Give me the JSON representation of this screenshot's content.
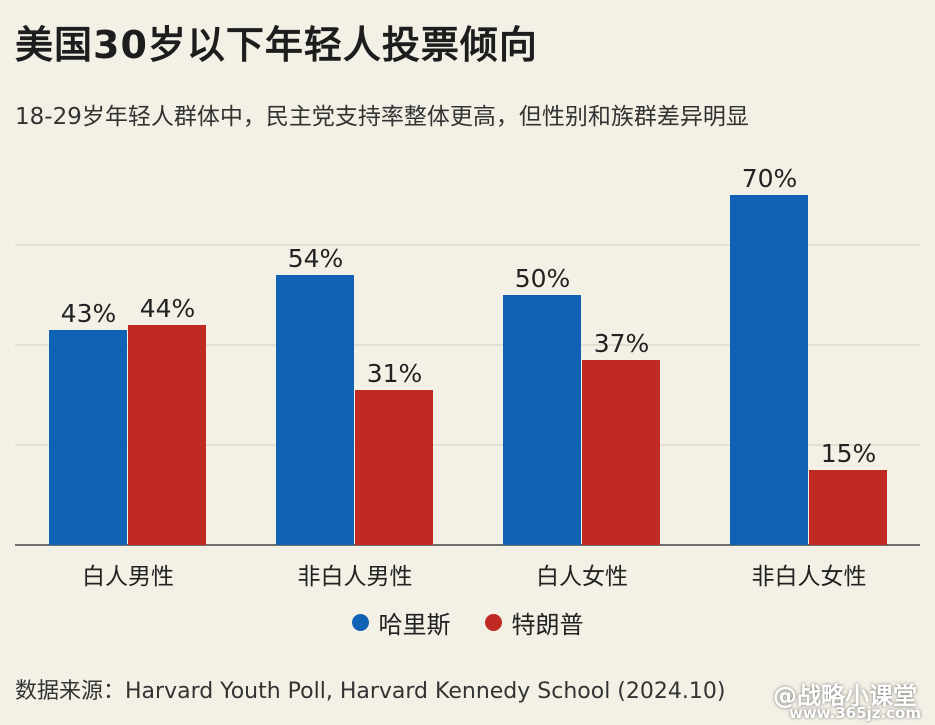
{
  "header": {
    "title": "美国30岁以下年轻人投票倾向",
    "subtitle": "18-29岁年轻人群体中，民主党支持率整体更高，但性别和族群差异明显"
  },
  "chart_data": {
    "type": "bar",
    "categories": [
      "白人男性",
      "非白人男性",
      "白人女性",
      "非白人女性"
    ],
    "series": [
      {
        "name": "哈里斯",
        "values": [
          43,
          54,
          50,
          70
        ],
        "color": "#1062b4"
      },
      {
        "name": "特朗普",
        "values": [
          44,
          31,
          37,
          15
        ],
        "color": "#c02a22"
      }
    ],
    "value_suffix": "%",
    "ylim": [
      0,
      80
    ],
    "grid": true,
    "legend_position": "bottom"
  },
  "legend": {
    "items": [
      {
        "label": "哈里斯",
        "color": "#1062b4"
      },
      {
        "label": "特朗普",
        "color": "#c02a22"
      }
    ]
  },
  "footer": {
    "source": "数据来源：Harvard Youth Poll, Harvard Kennedy School (2024.10)",
    "watermark": "@战略小课堂",
    "watermark_url": "www.365jz.com"
  }
}
